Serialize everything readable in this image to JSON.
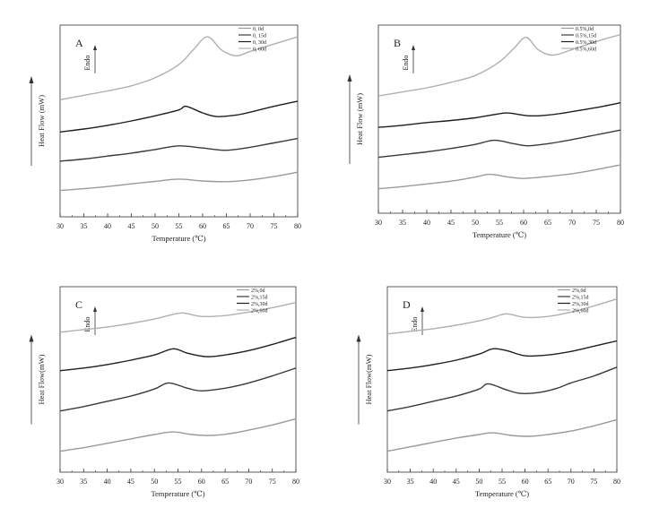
{
  "chart_data": [
    {
      "type": "line",
      "panel_label": "A",
      "endo_label": "Endo",
      "xlabel": "Temperature (℃)",
      "ylabel": "Heat Flow (mW)",
      "xlim": [
        30,
        80
      ],
      "xticks": [
        30,
        35,
        40,
        45,
        50,
        55,
        60,
        65,
        70,
        75,
        80
      ],
      "y_axis_values": false,
      "legend_position": "top-right",
      "series": [
        {
          "name": "0, 0d",
          "color": "#9a9a9a",
          "x": [
            30,
            35,
            40,
            45,
            50,
            55,
            60,
            65,
            70,
            75,
            80
          ],
          "y": [
            0.0,
            0.12,
            0.27,
            0.45,
            0.62,
            0.78,
            0.65,
            0.6,
            0.72,
            0.95,
            1.25
          ]
        },
        {
          "name": "0, 15d",
          "color": "#3a3a3a",
          "x": [
            30,
            35,
            40,
            45,
            50,
            55,
            60,
            65,
            70,
            75,
            80
          ],
          "y": [
            2.0,
            2.15,
            2.35,
            2.55,
            2.8,
            3.05,
            2.9,
            2.75,
            2.95,
            3.25,
            3.55
          ]
        },
        {
          "name": "0, 30d",
          "color": "#1e1e1e",
          "x": [
            30,
            35,
            40,
            45,
            50,
            55,
            56.5,
            60,
            63,
            67,
            70,
            75,
            80
          ],
          "y": [
            4.0,
            4.2,
            4.45,
            4.75,
            5.1,
            5.5,
            5.75,
            5.3,
            5.05,
            5.15,
            5.35,
            5.75,
            6.1
          ]
        },
        {
          "name": "0, 60d",
          "color": "#b0b0b0",
          "x": [
            30,
            35,
            40,
            45,
            50,
            55,
            58,
            61,
            64,
            67,
            70,
            75,
            80
          ],
          "y": [
            6.2,
            6.5,
            6.8,
            7.15,
            7.7,
            8.6,
            9.6,
            10.5,
            9.6,
            9.2,
            9.5,
            10.0,
            10.5
          ]
        }
      ]
    },
    {
      "type": "line",
      "panel_label": "B",
      "endo_label": "Endo",
      "xlabel": "Temperature (℃)",
      "ylabel": "Heat Flow (mW)",
      "xlim": [
        30,
        80
      ],
      "xticks": [
        30,
        35,
        40,
        45,
        50,
        55,
        60,
        65,
        70,
        75,
        80
      ],
      "y_axis_values": false,
      "legend_position": "top-right",
      "series": [
        {
          "name": "0.5%,0d",
          "color": "#9a9a9a",
          "x": [
            30,
            35,
            40,
            45,
            50,
            53,
            57,
            60,
            65,
            70,
            75,
            80
          ],
          "y": [
            0.0,
            0.15,
            0.35,
            0.55,
            0.85,
            1.05,
            0.85,
            0.75,
            0.9,
            1.1,
            1.4,
            1.75
          ]
        },
        {
          "name": "0.5%,15d",
          "color": "#3a3a3a",
          "x": [
            30,
            35,
            40,
            45,
            50,
            54,
            58,
            61,
            65,
            70,
            75,
            80
          ],
          "y": [
            2.3,
            2.5,
            2.7,
            2.95,
            3.25,
            3.55,
            3.3,
            3.15,
            3.3,
            3.6,
            3.95,
            4.3
          ]
        },
        {
          "name": "0.5%,30d",
          "color": "#1e1e1e",
          "x": [
            30,
            35,
            40,
            45,
            50,
            55,
            57,
            61,
            65,
            70,
            75,
            80
          ],
          "y": [
            4.5,
            4.65,
            4.85,
            5.0,
            5.2,
            5.5,
            5.55,
            5.35,
            5.4,
            5.65,
            5.95,
            6.3
          ]
        },
        {
          "name": "0.5%,60d",
          "color": "#b0b0b0",
          "x": [
            30,
            35,
            40,
            45,
            50,
            55,
            58,
            60.5,
            63,
            66,
            70,
            75,
            80
          ],
          "y": [
            6.8,
            7.1,
            7.4,
            7.8,
            8.3,
            9.3,
            10.3,
            11.1,
            10.2,
            9.8,
            10.2,
            10.8,
            11.3
          ]
        }
      ]
    },
    {
      "type": "line",
      "panel_label": "C",
      "endo_label": "Endo",
      "xlabel": "Temperature (℃)",
      "ylabel": "Heat Flow(mW)",
      "xlim": [
        30,
        80
      ],
      "xticks": [
        30,
        35,
        40,
        45,
        50,
        55,
        60,
        65,
        70,
        75,
        80
      ],
      "y_axis_values": false,
      "legend_position": "top-right",
      "series": [
        {
          "name": "2%,0d",
          "color": "#9a9a9a",
          "x": [
            30,
            35,
            40,
            45,
            50,
            54,
            58,
            62,
            66,
            70,
            75,
            80
          ],
          "y": [
            0.0,
            0.2,
            0.45,
            0.7,
            0.95,
            1.1,
            0.95,
            0.9,
            1.0,
            1.2,
            1.5,
            1.85
          ]
        },
        {
          "name": "2%,15d",
          "color": "#3a3a3a",
          "x": [
            30,
            35,
            40,
            45,
            50,
            53,
            57,
            60,
            65,
            70,
            75,
            80
          ],
          "y": [
            2.3,
            2.55,
            2.85,
            3.15,
            3.55,
            3.9,
            3.6,
            3.45,
            3.6,
            3.9,
            4.3,
            4.75
          ]
        },
        {
          "name": "2%,30d",
          "color": "#1e1e1e",
          "x": [
            30,
            35,
            40,
            45,
            50,
            54,
            57,
            61,
            65,
            70,
            75,
            80
          ],
          "y": [
            4.6,
            4.75,
            4.95,
            5.2,
            5.5,
            5.85,
            5.6,
            5.4,
            5.5,
            5.75,
            6.1,
            6.5
          ]
        },
        {
          "name": "2%,60d",
          "color": "#b0b0b0",
          "x": [
            30,
            35,
            40,
            45,
            50,
            53,
            56,
            60,
            65,
            70,
            75,
            80
          ],
          "y": [
            6.8,
            6.95,
            7.1,
            7.3,
            7.55,
            7.75,
            7.9,
            7.7,
            7.75,
            7.95,
            8.2,
            8.5
          ]
        }
      ]
    },
    {
      "type": "line",
      "panel_label": "D",
      "endo_label": "Endo",
      "xlabel": "Temperature (℃)",
      "ylabel": "Heat Flow(mW)",
      "xlim": [
        30,
        80
      ],
      "xticks": [
        30,
        35,
        40,
        45,
        50,
        55,
        60,
        65,
        70,
        75,
        80
      ],
      "y_axis_values": false,
      "legend_position": "top-right",
      "series": [
        {
          "name": "2%,0d",
          "color": "#9a9a9a",
          "x": [
            30,
            35,
            40,
            45,
            50,
            53,
            57,
            61,
            65,
            70,
            75,
            80
          ],
          "y": [
            0.0,
            0.25,
            0.5,
            0.75,
            0.95,
            1.05,
            0.9,
            0.85,
            0.95,
            1.15,
            1.45,
            1.8
          ]
        },
        {
          "name": "2%,15d",
          "color": "#3a3a3a",
          "x": [
            30,
            35,
            40,
            45,
            50,
            52,
            56,
            59,
            63,
            67,
            70,
            75,
            80
          ],
          "y": [
            2.3,
            2.55,
            2.85,
            3.15,
            3.55,
            3.85,
            3.5,
            3.3,
            3.35,
            3.6,
            3.9,
            4.3,
            4.8
          ]
        },
        {
          "name": "2%,30d",
          "color": "#1e1e1e",
          "x": [
            30,
            35,
            40,
            45,
            50,
            53,
            56,
            60,
            65,
            70,
            75,
            80
          ],
          "y": [
            4.6,
            4.75,
            4.95,
            5.2,
            5.55,
            5.85,
            5.75,
            5.45,
            5.5,
            5.7,
            6.0,
            6.3
          ]
        },
        {
          "name": "2%,60d",
          "color": "#b0b0b0",
          "x": [
            30,
            35,
            40,
            45,
            50,
            53,
            56,
            60,
            65,
            70,
            75,
            80
          ],
          "y": [
            6.7,
            6.85,
            7.0,
            7.2,
            7.45,
            7.65,
            7.85,
            7.65,
            7.7,
            7.95,
            8.3,
            8.7
          ]
        }
      ]
    }
  ]
}
